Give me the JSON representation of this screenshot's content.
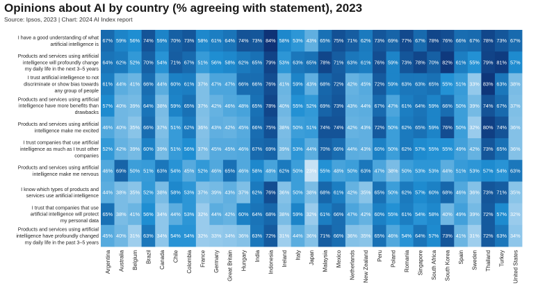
{
  "header": {
    "title": "Opinions about AI by country (% agreeing with statement), 2023",
    "source": "Source: Ipsos, 2023 | Chart: 2024 AI Index report"
  },
  "chart_data": {
    "type": "heatmap",
    "title": "Opinions about AI by country (% agreeing with statement), 2023",
    "subtitle": "Source: Ipsos, 2023 | Chart: 2024 AI Index report",
    "color_scale": {
      "low": "#d6eaf8",
      "mid": "#1f8fd3",
      "high": "#0d2f73",
      "min_value": 20,
      "max_value": 85
    },
    "columns": [
      "Argentina",
      "Australia",
      "Belgium",
      "Brazil",
      "Canada",
      "Chile",
      "Colombia",
      "France",
      "Germany",
      "Great Britain",
      "Hungary",
      "India",
      "Indonesia",
      "Ireland",
      "Italy",
      "Japan",
      "Malaysia",
      "Mexico",
      "Netherlands",
      "New Zealand",
      "Peru",
      "Poland",
      "Romania",
      "Singapore",
      "South Africa",
      "South Korea",
      "Spain",
      "Sweden",
      "Thailand",
      "Turkey",
      "United States"
    ],
    "rows": [
      {
        "label": [
          "I have a good understanding of what",
          "artificial intelligence is"
        ],
        "values": [
          67,
          59,
          56,
          74,
          59,
          70,
          73,
          58,
          61,
          64,
          74,
          73,
          84,
          58,
          53,
          43,
          65,
          75,
          71,
          62,
          73,
          69,
          77,
          67,
          78,
          76,
          66,
          67,
          78,
          73,
          67
        ]
      },
      {
        "label": [
          "Products and services using artificial",
          "intelligence will profoundly change",
          "my daily life in the next 3–5 years"
        ],
        "values": [
          64,
          62,
          52,
          70,
          54,
          71,
          67,
          51,
          56,
          58,
          62,
          65,
          79,
          53,
          63,
          65,
          78,
          71,
          63,
          61,
          76,
          59,
          73,
          78,
          70,
          82,
          61,
          55,
          79,
          81,
          57
        ]
      },
      {
        "label": [
          "I trust artificial intelligence to not",
          "discriminate or show bias towards",
          "any group of people"
        ],
        "values": [
          61,
          44,
          41,
          66,
          44,
          60,
          61,
          37,
          47,
          47,
          66,
          66,
          76,
          41,
          59,
          43,
          68,
          72,
          42,
          45,
          72,
          59,
          63,
          63,
          65,
          55,
          51,
          33,
          83,
          63,
          38
        ]
      },
      {
        "label": [
          "Products and services using artificial",
          "intelligence have more benefits than",
          "drawbacks"
        ],
        "values": [
          57,
          40,
          39,
          64,
          38,
          59,
          65,
          37,
          42,
          46,
          48,
          65,
          78,
          40,
          55,
          52,
          69,
          73,
          43,
          44,
          67,
          47,
          61,
          64,
          59,
          66,
          50,
          39,
          74,
          67,
          37
        ]
      },
      {
        "label": [
          "Products and services using artificial",
          "intelligence make me excited"
        ],
        "values": [
          46,
          40,
          35,
          66,
          37,
          51,
          62,
          36,
          43,
          42,
          45,
          66,
          75,
          38,
          50,
          51,
          74,
          74,
          42,
          43,
          72,
          50,
          62,
          65,
          59,
          76,
          50,
          32,
          80,
          74,
          36
        ]
      },
      {
        "label": [
          "I trust companies that use artificial",
          "intelligence as much as I trust other",
          "companies"
        ],
        "values": [
          52,
          42,
          39,
          60,
          39,
          51,
          56,
          37,
          45,
          45,
          46,
          67,
          69,
          39,
          53,
          44,
          70,
          66,
          44,
          43,
          60,
          50,
          62,
          57,
          55,
          55,
          49,
          42,
          73,
          65,
          36
        ]
      },
      {
        "label": [
          "Products and services using artificial",
          "intelligence make me nervous"
        ],
        "values": [
          46,
          69,
          50,
          51,
          63,
          54,
          45,
          52,
          46,
          65,
          46,
          58,
          48,
          62,
          50,
          23,
          55,
          48,
          50,
          63,
          47,
          38,
          50,
          53,
          53,
          44,
          51,
          53,
          57,
          54,
          63
        ]
      },
      {
        "label": [
          "I know which types of products and",
          "services use artificial intelligence"
        ],
        "values": [
          44,
          38,
          35,
          52,
          38,
          58,
          53,
          37,
          39,
          43,
          37,
          62,
          76,
          36,
          50,
          38,
          68,
          61,
          42,
          35,
          65,
          50,
          62,
          57,
          60,
          68,
          46,
          36,
          73,
          71,
          35
        ]
      },
      {
        "label": [
          "I trust that companies that use",
          "artificial intelligence will protect",
          "my personal data"
        ],
        "values": [
          65,
          38,
          41,
          56,
          34,
          44,
          53,
          32,
          44,
          42,
          60,
          64,
          68,
          38,
          59,
          32,
          61,
          66,
          47,
          42,
          60,
          55,
          61,
          54,
          58,
          40,
          49,
          39,
          72,
          57,
          32
        ]
      },
      {
        "label": [
          "Products and services using artificial",
          "intelligence have profoundly changed",
          "my daily life in the past 3–5 years"
        ],
        "values": [
          45,
          40,
          31,
          63,
          34,
          54,
          54,
          32,
          33,
          34,
          36,
          63,
          72,
          31,
          44,
          36,
          71,
          66,
          36,
          35,
          65,
          46,
          54,
          64,
          57,
          73,
          41,
          31,
          72,
          63,
          34
        ]
      }
    ]
  }
}
